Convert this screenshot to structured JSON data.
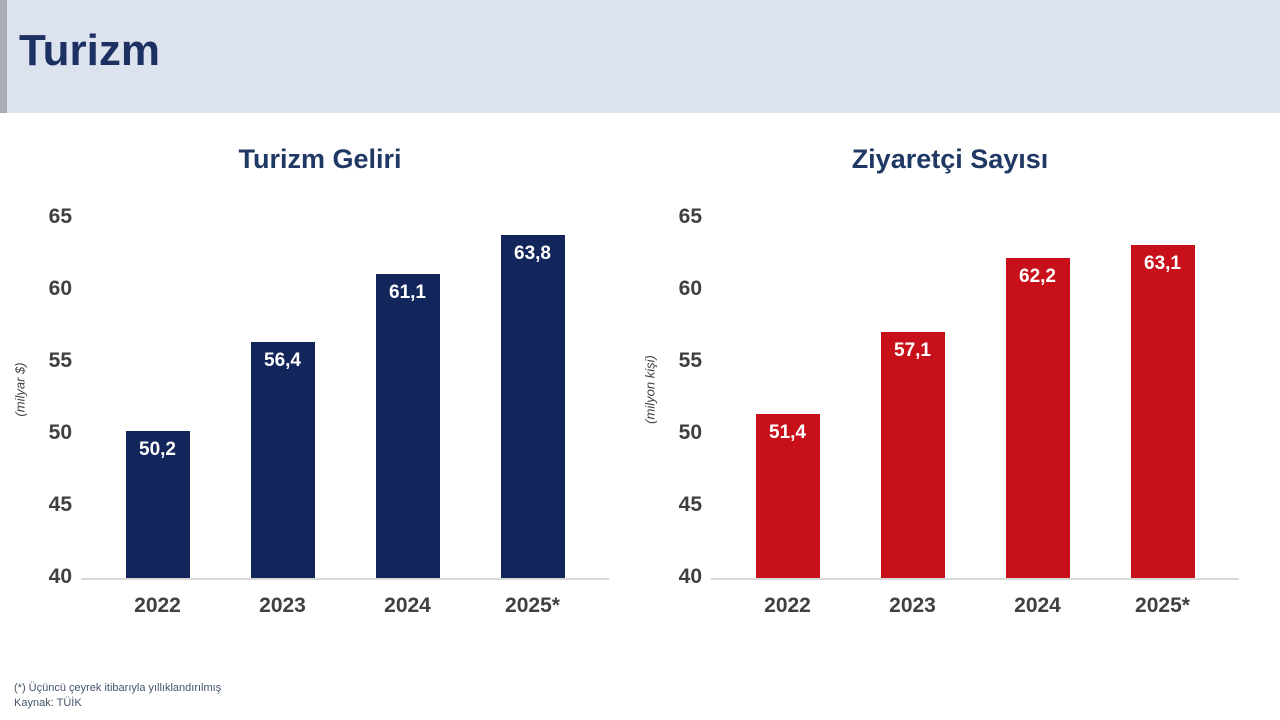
{
  "page": {
    "title": "Turizm"
  },
  "colors": {
    "header_bg": "#dce3ef",
    "header_title": "#1c3061",
    "chart_title": "#1f3864",
    "navy_bar": "#13265b",
    "red_bar": "#c8101a",
    "axis_text": "#404040",
    "baseline": "#d9d9d9",
    "footer_text": "#44546a",
    "bar_value_text": "#ffffff"
  },
  "chart_data": [
    {
      "type": "bar",
      "title": "Turizm Geliri",
      "ylabel": "(milyar $)",
      "xlabel": "",
      "categories": [
        "2022",
        "2023",
        "2024",
        "2025*"
      ],
      "values": [
        50.2,
        56.4,
        61.1,
        63.8
      ],
      "value_labels": [
        "50,2",
        "56,4",
        "61,1",
        "63,8"
      ],
      "ylim": [
        40,
        65
      ],
      "yticks": [
        40,
        45,
        50,
        55,
        60,
        65
      ],
      "bar_color": "#13265b",
      "grid": false,
      "legend": "none"
    },
    {
      "type": "bar",
      "title": "Ziyaretçi Sayısı",
      "ylabel": "(milyon kişi)",
      "xlabel": "",
      "categories": [
        "2022",
        "2023",
        "2024",
        "2025*"
      ],
      "values": [
        51.4,
        57.1,
        62.2,
        63.1
      ],
      "value_labels": [
        "51,4",
        "57,1",
        "62,2",
        "63,1"
      ],
      "ylim": [
        40,
        65
      ],
      "yticks": [
        40,
        45,
        50,
        55,
        60,
        65
      ],
      "bar_color": "#c8101a",
      "grid": false,
      "legend": "none"
    }
  ],
  "footer": {
    "note": "(*) Üçüncü çeyrek itibarıyla yıllıklandırılmış",
    "source": "Kaynak: TÜİK"
  }
}
